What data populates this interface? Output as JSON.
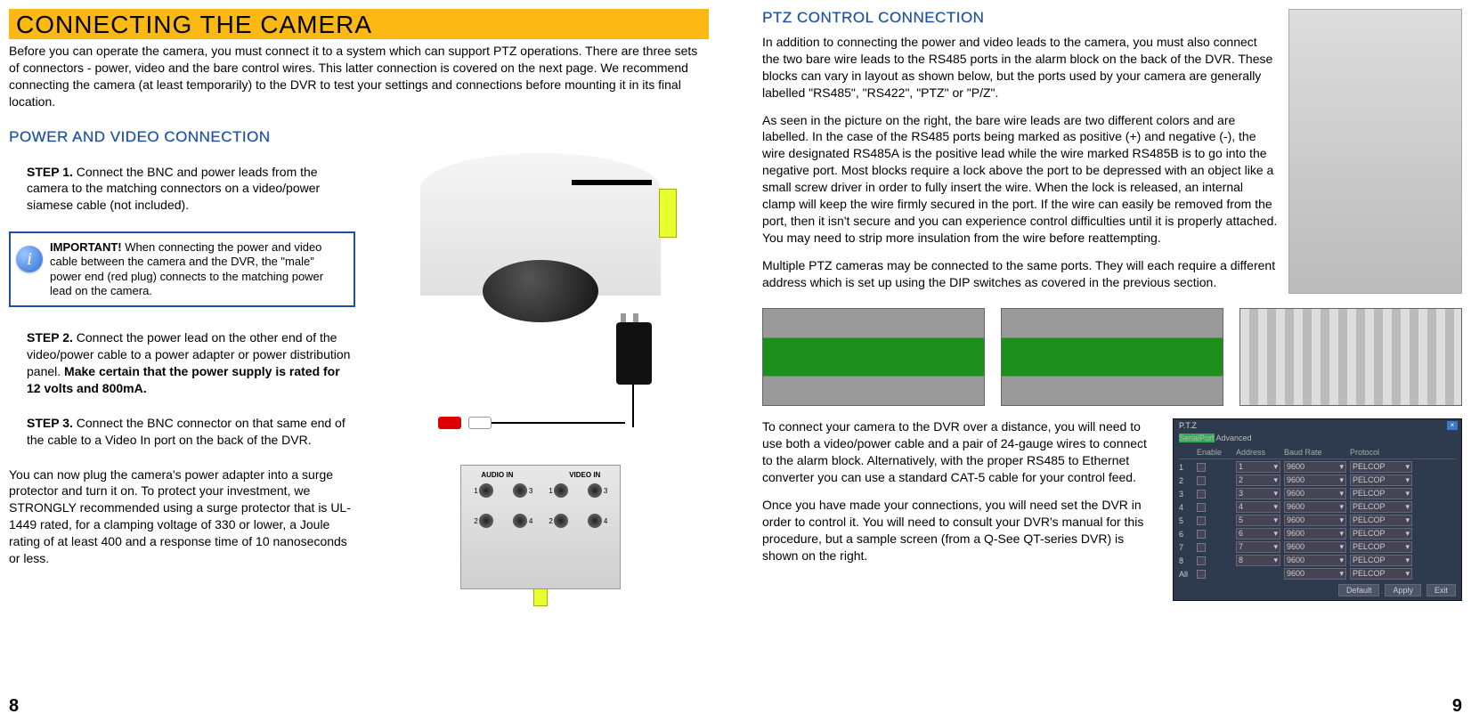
{
  "left": {
    "titleBar": "CONNECTING THE CAMERA",
    "intro": "Before you can operate the camera, you must connect it to a system which can support PTZ operations. There are three sets of connectors - power, video and the bare control wires. This latter connection is covered on the next page. We recommend connecting the camera (at least temporarily) to the DVR to test your settings and connections before mounting it in its final location.",
    "sectionHeading": "POWER AND VIDEO CONNECTION",
    "step1Label": "STEP 1.",
    "step1Text": " Connect the BNC and power leads from the camera to the matching connectors on a video/power siamese cable (not included).",
    "importantLabel": "IMPORTANT!",
    "importantText": " When connecting the power and video cable between the camera and the DVR, the \"male\" power end (red plug) connects to the matching power lead on the camera.",
    "step2Label": "STEP 2.",
    "step2Text": " Connect the power lead on the other end of the video/power cable to a power adapter or power distribution panel. ",
    "step2Bold": "Make certain that the power supply is rated for 12 volts and 800mA.",
    "step3Label": "STEP 3.",
    "step3Text": " Connect the BNC connector on that same end of the cable to a Video In port on the back of the DVR.",
    "surgeText": "You can now plug the camera's power adapter into a surge protector and turn it on. To protect your investment, we STRONGLY recommended using a surge protector that is UL-1449 rated, for a clamping voltage of 330 or lower, a Joule rating of at least 400 and a response time of 10 nanoseconds or less.",
    "audioInLabel": "AUDIO IN",
    "videoInLabel": "VIDEO IN",
    "pageNum": "8"
  },
  "right": {
    "sectionHeading": "PTZ CONTROL CONNECTION",
    "p1": "In addition to connecting the power and video leads to the camera, you must also connect the  two bare wire leads to the RS485 ports in the alarm block on the back of the DVR. These blocks can vary in layout as shown below, but the ports used by your camera are generally labelled \"RS485\", \"RS422\", \"PTZ\" or \"P/Z\".",
    "p2": "As seen in the picture on the right, the bare wire leads are two different colors and are labelled. In the case of the RS485 ports being marked as positive (+) and negative (-), the wire designated RS485A is the positive lead while the wire marked RS485B is to go into the negative port. Most blocks require a lock above the port to be depressed with an object like a small screw driver in order to fully insert the wire. When the lock is released, an internal clamp will keep the wire firmly secured in the port. If the wire can easily be removed from the port, then it isn't secure and you can experience control difficulties until it is properly attached. You may need to strip more insulation from the wire before reattempting.",
    "p3": "Multiple PTZ cameras may be connected to the same ports. They will each require a different address which is set up using the DIP switches as covered in the previous section.",
    "p4": "To connect your camera to the DVR over a distance, you will need to use both a video/power cable and a pair of 24-gauge wires to connect to the alarm block. Alternatively, with the proper RS485 to Ethernet converter you can use a standard CAT-5 cable for your control feed.",
    "p5": "Once you have made your connections, you will need set the DVR in order to control it. You will need to consult your DVR's manual for this procedure, but a sample screen (from a Q-See QT-series DVR) is shown on the right.",
    "pageNum": "9",
    "ptz": {
      "windowTitle": "P.T.Z",
      "tab1": "SerialPort",
      "tab2": "Advanced",
      "headers": [
        "",
        "Enable",
        "Address",
        "Baud Rate",
        "Protocol"
      ],
      "rows": [
        {
          "n": "1",
          "addr": "1",
          "baud": "9600",
          "proto": "PELCOP"
        },
        {
          "n": "2",
          "addr": "2",
          "baud": "9600",
          "proto": "PELCOP"
        },
        {
          "n": "3",
          "addr": "3",
          "baud": "9600",
          "proto": "PELCOP"
        },
        {
          "n": "4",
          "addr": "4",
          "baud": "9600",
          "proto": "PELCOP"
        },
        {
          "n": "5",
          "addr": "5",
          "baud": "9600",
          "proto": "PELCOP"
        },
        {
          "n": "6",
          "addr": "6",
          "baud": "9600",
          "proto": "PELCOP"
        },
        {
          "n": "7",
          "addr": "7",
          "baud": "9600",
          "proto": "PELCOP"
        },
        {
          "n": "8",
          "addr": "8",
          "baud": "9600",
          "proto": "PELCOP"
        }
      ],
      "allLabel": "All",
      "allBaud": "9600",
      "allProto": "PELCOP",
      "btnDefault": "Default",
      "btnApply": "Apply",
      "btnExit": "Exit"
    }
  }
}
